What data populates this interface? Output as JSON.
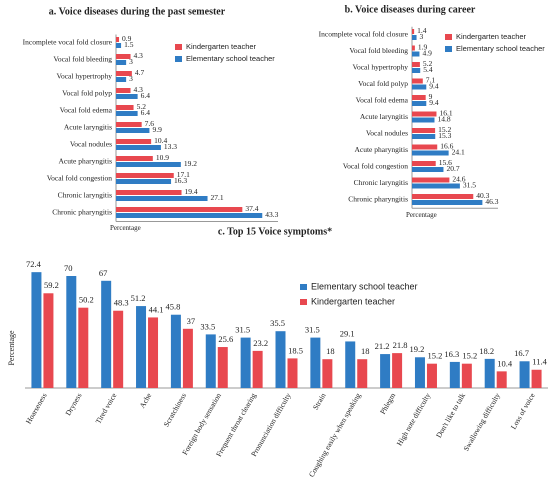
{
  "chart_data": [
    {
      "type": "bar",
      "orientation": "horizontal",
      "title": "a. Voice diseases during the past semester",
      "xlabel": "Percentage",
      "categories": [
        "Incomplete vocal fold closure",
        "Vocal fold bleeding",
        "Vocal hypertrophy",
        "Vocal fold polyp",
        "Vocal fold edema",
        "Acute laryngitis",
        "Vocal nodules",
        "Acute pharyngitis",
        "Vocal fold congestion",
        "Chronic laryngitis",
        "Chronic pharyngitis"
      ],
      "series": [
        {
          "name": "Kindergarten teacher",
          "color": "#e8484f",
          "values": [
            0.9,
            4.3,
            4.7,
            4.3,
            5.2,
            7.6,
            10.4,
            10.9,
            17.1,
            19.4,
            37.4
          ]
        },
        {
          "name": "Elementary school teacher",
          "color": "#2f7cc4",
          "values": [
            1.5,
            3,
            3,
            6.4,
            6.4,
            9.9,
            13.3,
            19.2,
            16.3,
            27.1,
            43.3
          ]
        }
      ],
      "xlim": [
        0,
        45
      ]
    },
    {
      "type": "bar",
      "orientation": "horizontal",
      "title": "b. Voice diseases during career",
      "xlabel": "Percentage",
      "categories": [
        "Incomplete vocal fold closure",
        "Vocal fold bleeding",
        "Vocal hypertrophy",
        "Vocal fold polyp",
        "Vocal fold edema",
        "Acute laryngitis",
        "Vocal nodules",
        "Acute pharyngitis",
        "Vocal fold congestion",
        "Chronic laryngitis",
        "Chronic pharyngitis"
      ],
      "series": [
        {
          "name": "Kindergarten teacher",
          "color": "#e8484f",
          "values": [
            1.4,
            1.9,
            5.2,
            7.1,
            9,
            16.1,
            15.2,
            16.6,
            15.6,
            24.6,
            40.3
          ]
        },
        {
          "name": "Elementary school teacher",
          "color": "#2f7cc4",
          "values": [
            3,
            4.9,
            5.4,
            9.4,
            9.4,
            14.8,
            15.3,
            24.1,
            20.7,
            31.5,
            46.3
          ]
        }
      ],
      "xlim": [
        0,
        50
      ]
    },
    {
      "type": "bar",
      "orientation": "vertical",
      "title": "c. Top 15 Voice symptoms*",
      "ylabel": "Percentage",
      "categories": [
        "Hoarseness",
        "Dryness",
        "Tired voice",
        "Ache",
        "Scratchiness",
        "Foreign body sensation",
        "Frequent throat clearing",
        "Pronunciation difficulty",
        "Strain",
        "Coughing easily when speaking",
        "Phlegm",
        "High note difficulty",
        "Don't like to talk",
        "Swallowing difficulty",
        "Loss of voice"
      ],
      "series": [
        {
          "name": "Elementary school teacher",
          "color": "#2f7cc4",
          "values": [
            72.4,
            70,
            67,
            51.2,
            45.8,
            33.5,
            31.5,
            35.5,
            31.5,
            29.1,
            21.2,
            19.2,
            16.3,
            18.2,
            16.7
          ]
        },
        {
          "name": "Kindergarten teacher",
          "color": "#e8484f",
          "values": [
            59.2,
            50.2,
            48.3,
            44.1,
            37,
            25.6,
            23.2,
            18.5,
            18,
            18,
            21.8,
            15.2,
            15.2,
            10.4,
            11.4
          ]
        }
      ],
      "ylim": [
        0,
        80
      ]
    }
  ]
}
